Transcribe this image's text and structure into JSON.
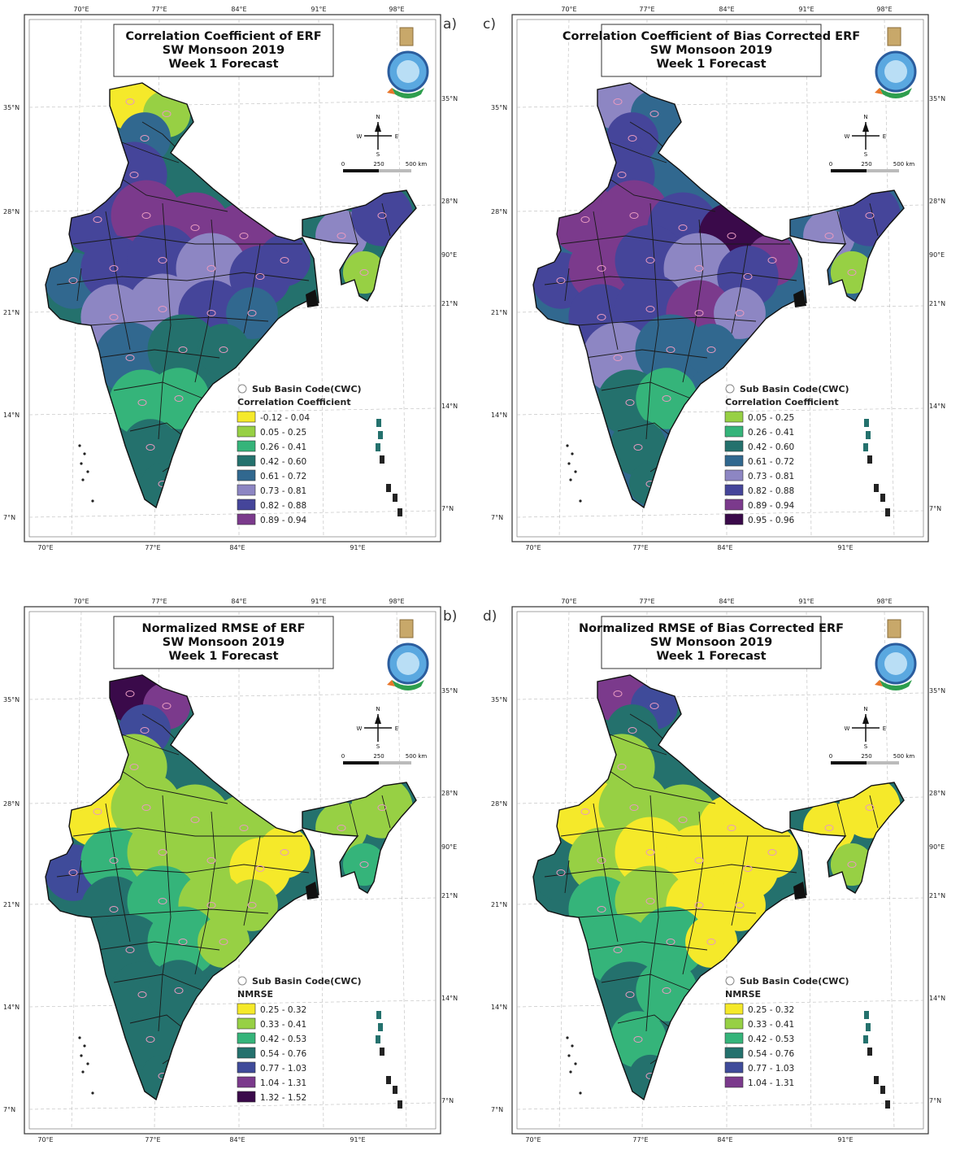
{
  "panels": [
    {
      "id": "a",
      "letter": "a)",
      "title": [
        "Correlation Coefficient of ERF",
        "SW Monsoon 2019",
        "Week 1 Forecast"
      ],
      "legend_heading": "Correlation Coefficient",
      "legend_subbasin": "Sub Basin Code(CWC)",
      "classes": [
        {
          "label": "-0.12 - 0.04",
          "color": "#f5e92a"
        },
        {
          "label": "0.05 - 0.25",
          "color": "#97d044"
        },
        {
          "label": "0.26 - 0.41",
          "color": "#35b47a"
        },
        {
          "label": "0.42 - 0.60",
          "color": "#24716d"
        },
        {
          "label": "0.61 - 0.72",
          "color": "#31688f"
        },
        {
          "label": "0.73 - 0.81",
          "color": "#8d86c3"
        },
        {
          "label": "0.82 - 0.88",
          "color": "#45459a"
        },
        {
          "label": "0.89 - 0.94",
          "color": "#7b3a8c"
        }
      ]
    },
    {
      "id": "c",
      "letter": "c)",
      "title": [
        "Correlation Coefficient of Bias Corrected ERF",
        "SW Monsoon 2019",
        "Week 1 Forecast"
      ],
      "legend_heading": "Correlation Coefficient",
      "legend_subbasin": "Sub Basin Code(CWC)",
      "classes": [
        {
          "label": "0.05 - 0.25",
          "color": "#97d044"
        },
        {
          "label": "0.26 - 0.41",
          "color": "#35b47a"
        },
        {
          "label": "0.42 - 0.60",
          "color": "#24716d"
        },
        {
          "label": "0.61 - 0.72",
          "color": "#31688f"
        },
        {
          "label": "0.73 - 0.81",
          "color": "#8d86c3"
        },
        {
          "label": "0.82 - 0.88",
          "color": "#45459a"
        },
        {
          "label": "0.89 - 0.94",
          "color": "#7b3a8c"
        },
        {
          "label": "0.95 - 0.96",
          "color": "#3a0a4a"
        }
      ]
    },
    {
      "id": "b",
      "letter": "b)",
      "title": [
        "Normalized RMSE of ERF",
        "SW Monsoon 2019",
        "Week 1 Forecast"
      ],
      "legend_heading": "NMRSE",
      "legend_subbasin": "Sub Basin Code(CWC)",
      "classes": [
        {
          "label": "0.25 - 0.32",
          "color": "#f5e92a"
        },
        {
          "label": "0.33 - 0.41",
          "color": "#97d044"
        },
        {
          "label": "0.42 - 0.53",
          "color": "#35b47a"
        },
        {
          "label": "0.54 - 0.76",
          "color": "#24716d"
        },
        {
          "label": "0.77 - 1.03",
          "color": "#3f4b9a"
        },
        {
          "label": "1.04 - 1.31",
          "color": "#7b3a8c"
        },
        {
          "label": "1.32 - 1.52",
          "color": "#3a0a4a"
        }
      ]
    },
    {
      "id": "d",
      "letter": "d)",
      "title": [
        "Normalized RMSE of Bias Corrected ERF",
        "SW Monsoon 2019",
        "Week 1 Forecast"
      ],
      "legend_heading": "NMRSE",
      "legend_subbasin": "Sub Basin Code(CWC)",
      "classes": [
        {
          "label": "0.25 - 0.32",
          "color": "#f5e92a"
        },
        {
          "label": "0.33 - 0.41",
          "color": "#97d044"
        },
        {
          "label": "0.42 - 0.53",
          "color": "#35b47a"
        },
        {
          "label": "0.54 - 0.76",
          "color": "#24716d"
        },
        {
          "label": "0.77 - 1.03",
          "color": "#3f4b9a"
        },
        {
          "label": "1.04 - 1.31",
          "color": "#7b3a8c"
        }
      ]
    }
  ],
  "axes": {
    "lon_top": [
      "70°E",
      "77°E",
      "84°E",
      "91°E",
      "98°E"
    ],
    "lon_bottom": [
      "70°E",
      "77°E",
      "84°E",
      "91°E"
    ],
    "lat_left": [
      "35°N",
      "28°N",
      "21°N",
      "14°N",
      "7°N"
    ],
    "lat_right": [
      "35°N",
      "28°N",
      "90°E",
      "21°N",
      "14°N",
      "7°N"
    ]
  },
  "compass": {
    "n": "N",
    "s": "S",
    "e": "E",
    "w": "W"
  },
  "scale_bar": {
    "start": "0",
    "mid": "250",
    "end": "500 km"
  }
}
